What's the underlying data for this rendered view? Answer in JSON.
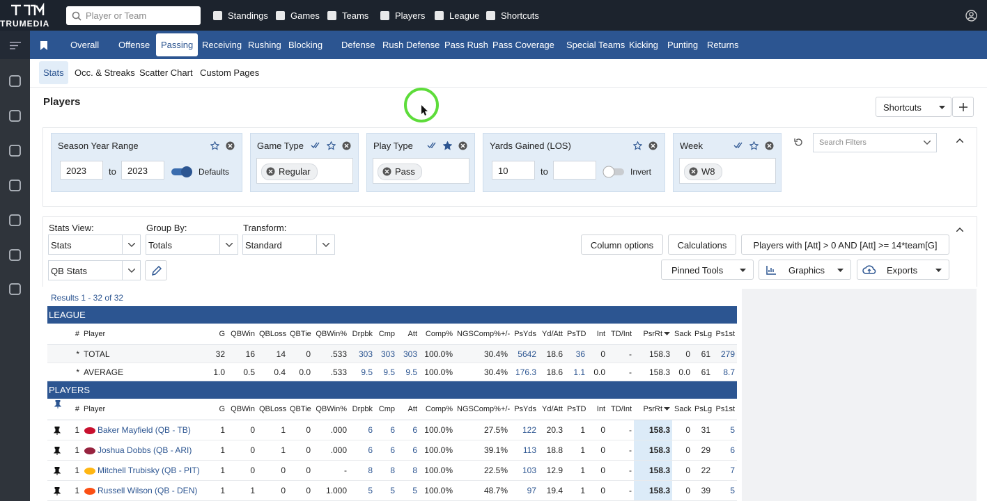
{
  "header": {
    "logo": "TRUMEDIA",
    "search_placeholder": "Player or Team",
    "nav": [
      "Standings",
      "Games",
      "Teams",
      "Players",
      "League",
      "Shortcuts"
    ]
  },
  "tabs": {
    "items": [
      "Overall",
      "Offense",
      "Passing",
      "Receiving",
      "Rushing",
      "Blocking",
      "Defense",
      "Rush Defense",
      "Pass Rush",
      "Pass Coverage",
      "Special Teams",
      "Kicking",
      "Punting",
      "Returns"
    ],
    "active": 2
  },
  "subtabs": {
    "items": [
      "Stats",
      "Occ. & Streaks",
      "Scatter Chart",
      "Custom Pages"
    ],
    "active": 0
  },
  "page_title": "Players",
  "shortcuts_button": "Shortcuts",
  "filters": [
    {
      "title": "Season Year Range",
      "from": "2023",
      "to_label": "to",
      "to": "2023",
      "toggle": "Defaults",
      "toggle_on": true
    },
    {
      "title": "Game Type",
      "chips": [
        "Regular"
      ]
    },
    {
      "title": "Play Type",
      "chips": [
        "Pass"
      ]
    },
    {
      "title": "Yards Gained (LOS)",
      "from": "10",
      "to_label": "to",
      "toggle": "Invert",
      "toggle_on": false
    },
    {
      "title": "Week",
      "chips": [
        "W8"
      ]
    }
  ],
  "search_filters_placeholder": "Search Filters",
  "controls": {
    "stats_view": {
      "label": "Stats View:",
      "value": "Stats"
    },
    "group_by": {
      "label": "Group By:",
      "value": "Totals"
    },
    "transform": {
      "label": "Transform:",
      "value": "Standard"
    },
    "stat_set": "QB Stats"
  },
  "buttons": [
    "Column options",
    "Calculations",
    "Players with [Att] > 0 AND [Att] >= 14*team[G]"
  ],
  "tools": [
    "Pinned Tools",
    "Graphics",
    "Exports"
  ],
  "results": "Results 1 - 32 of 32",
  "table": {
    "columns": [
      "#",
      "Player",
      "G",
      "QBWin",
      "QBLoss",
      "QBTie",
      "QBWin%",
      "Drpbk",
      "Cmp",
      "Att",
      "Comp%",
      "NGSComp%+/-",
      "PsYds",
      "Yd/Att",
      "PsTD",
      "Int",
      "TD/Int",
      "PsrRt",
      "Sack",
      "PsLg",
      "Ps1st"
    ],
    "sections": [
      {
        "title": "LEAGUE",
        "rows": [
          [
            "*",
            "TOTAL",
            "32",
            "16",
            "14",
            "0",
            ".533",
            "303",
            "303",
            "303",
            "100.0%",
            "30.4%",
            "5642",
            "18.6",
            "36",
            "0",
            "-",
            "158.3",
            "0",
            "61",
            "279"
          ],
          [
            "*",
            "AVERAGE",
            "1.0",
            "0.5",
            "0.4",
            "0.0",
            ".533",
            "9.5",
            "9.5",
            "9.5",
            "100.0%",
            "30.4%",
            "176.3",
            "18.6",
            "1.1",
            "0.0",
            "-",
            "158.3",
            "0.0",
            "61",
            "8.7"
          ]
        ]
      },
      {
        "title": "PLAYERS",
        "rows": [
          [
            "1",
            "Baker Mayfield (QB - TB)",
            "1",
            "0",
            "1",
            "0",
            ".000",
            "6",
            "6",
            "6",
            "100.0%",
            "27.5%",
            "122",
            "20.3",
            "1",
            "0",
            "-",
            "158.3",
            "0",
            "31",
            "5"
          ],
          [
            "1",
            "Joshua Dobbs (QB - ARI)",
            "1",
            "0",
            "1",
            "0",
            ".000",
            "6",
            "6",
            "6",
            "100.0%",
            "39.1%",
            "113",
            "18.8",
            "1",
            "0",
            "-",
            "158.3",
            "0",
            "29",
            "6"
          ],
          [
            "1",
            "Mitchell Trubisky (QB - PIT)",
            "1",
            "0",
            "0",
            "0",
            "-",
            "8",
            "8",
            "8",
            "100.0%",
            "22.5%",
            "103",
            "12.9",
            "1",
            "0",
            "-",
            "158.3",
            "0",
            "22",
            "7"
          ],
          [
            "1",
            "Russell Wilson (QB - DEN)",
            "1",
            "1",
            "0",
            "0",
            "1.000",
            "5",
            "5",
            "5",
            "100.0%",
            "48.7%",
            "97",
            "19.4",
            "1",
            "0",
            "-",
            "158.3",
            "0",
            "39",
            "5"
          ]
        ]
      }
    ]
  }
}
